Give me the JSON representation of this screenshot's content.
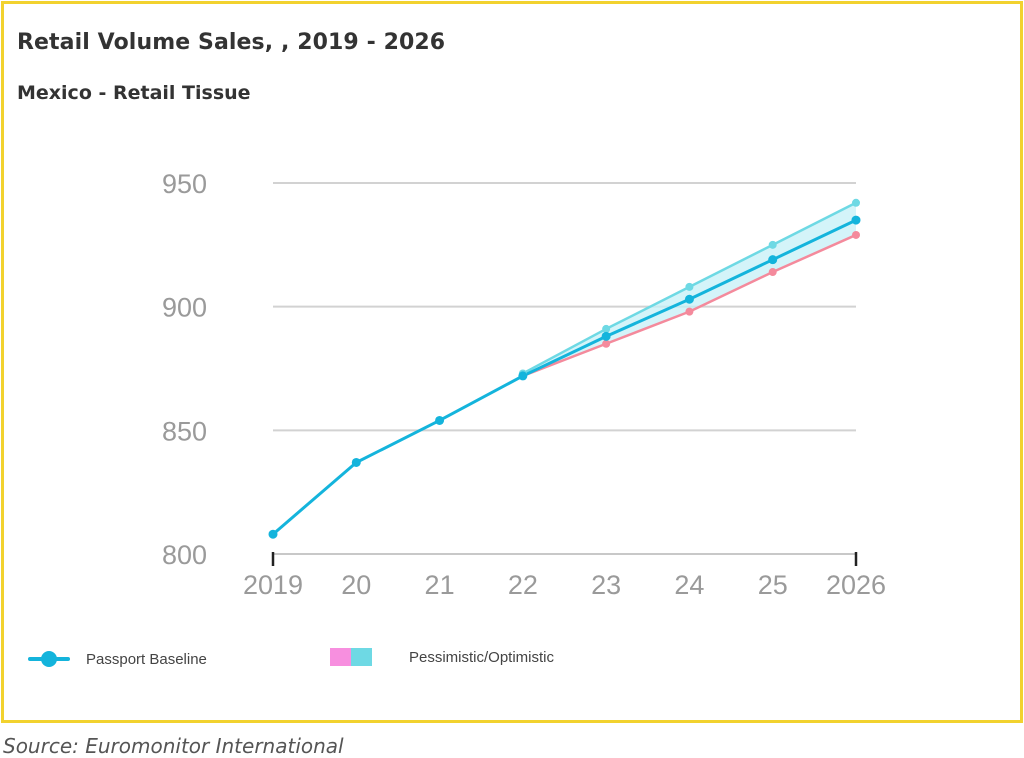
{
  "header": {
    "title": "Retail Volume Sales, , 2019 - 2026",
    "subtitle": "Mexico - Retail Tissue"
  },
  "legend": {
    "baseline_label": "Passport Baseline",
    "range_label": "Pessimistic/Optimistic"
  },
  "footer": {
    "source": "Source: Euromonitor International"
  },
  "colors": {
    "frame": "#f2d22e",
    "baseline": "#14b4dc",
    "optimistic": "#6ed9e4",
    "pessimistic": "#f48a9c",
    "band": "#c6f0f7",
    "legend_pink": "#f78fdf",
    "legend_cyan": "#6ed9e4",
    "grid": "#d2d2d2",
    "tick_text": "#9a9a9a"
  },
  "chart_data": {
    "type": "line",
    "x": [
      2019,
      2020,
      2021,
      2022,
      2023,
      2024,
      2025,
      2026
    ],
    "tick_labels": [
      "2019",
      "20",
      "21",
      "22",
      "23",
      "24",
      "25",
      "2026"
    ],
    "ylim": [
      800,
      950
    ],
    "yticks": [
      800,
      850,
      900,
      950
    ],
    "grid": true,
    "legend_position": "bottom-left",
    "series": [
      {
        "name": "Passport Baseline",
        "role": "baseline",
        "values": [
          808,
          837,
          854,
          872,
          888,
          903,
          919,
          935
        ]
      },
      {
        "role": "optimistic",
        "values": [
          null,
          null,
          null,
          873,
          891,
          908,
          925,
          942
        ]
      },
      {
        "role": "pessimistic",
        "values": [
          null,
          null,
          null,
          872,
          885,
          898,
          914,
          929
        ]
      }
    ]
  }
}
